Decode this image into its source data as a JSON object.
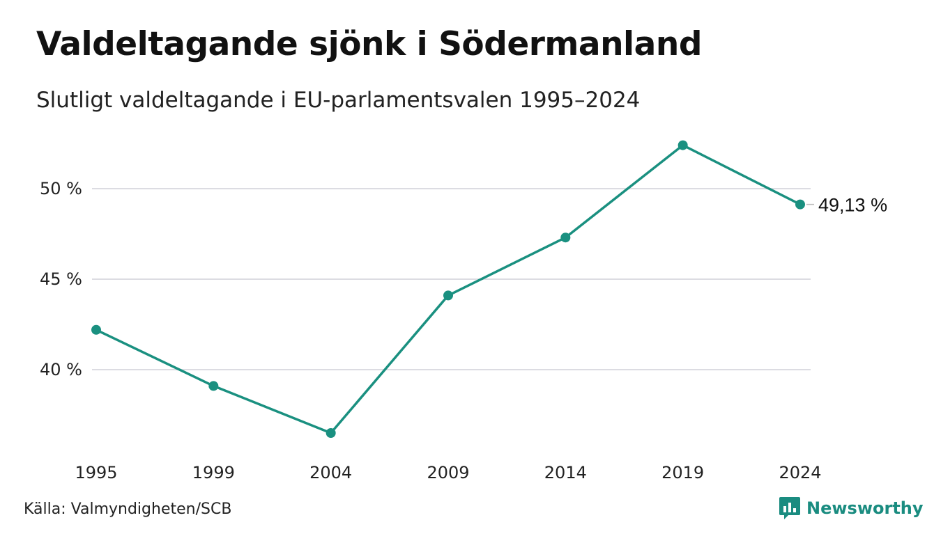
{
  "header": {
    "title": "Valdeltagande sjönk i Södermanland",
    "subtitle": "Slutligt valdeltagande i EU-parlamentsvalen 1995–2024"
  },
  "footer": {
    "source": "Källa: Valmyndigheten/SCB",
    "brand": "Newsworthy",
    "brand_icon": "bar-chart-speech-bubble-icon"
  },
  "colors": {
    "line": "#1a9080",
    "grid": "#dcdce2",
    "text": "#111111",
    "brand": "#1a8c80"
  },
  "chart_data": {
    "type": "line",
    "title": "Valdeltagande sjönk i Södermanland",
    "subtitle": "Slutligt valdeltagande i EU-parlamentsvalen 1995–2024",
    "x": [
      "1995",
      "1999",
      "2004",
      "2009",
      "2014",
      "2019",
      "2024"
    ],
    "series": [
      {
        "values": [
          42.2,
          39.1,
          36.5,
          44.1,
          47.3,
          52.4,
          49.13
        ]
      }
    ],
    "ylim": [
      35.2,
      52.9
    ],
    "yticks": [
      {
        "value": 40,
        "label": "40 %"
      },
      {
        "value": 45,
        "label": "45 %"
      },
      {
        "value": 50,
        "label": "50 %"
      }
    ],
    "end_label": "49,13 %",
    "grid": true,
    "legend": "none",
    "xlabel": "",
    "ylabel": ""
  }
}
